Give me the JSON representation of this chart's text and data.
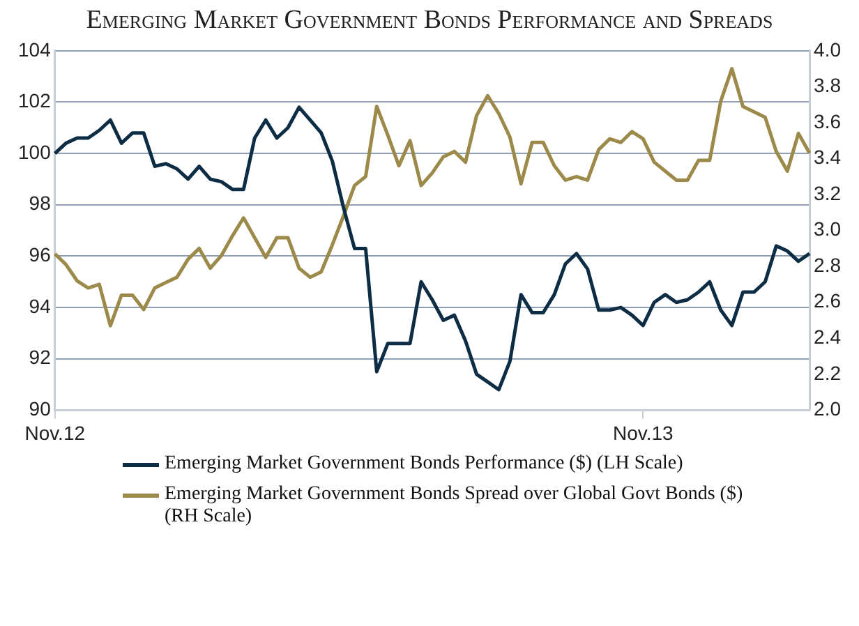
{
  "chart_data": {
    "type": "line",
    "title": "Emerging Market Government Bonds Performance and Spreads",
    "categories": [
      "Nov.12",
      null,
      null,
      null,
      null,
      null,
      null,
      null,
      null,
      null,
      null,
      null,
      null,
      null,
      null,
      null,
      null,
      null,
      null,
      null,
      null,
      null,
      null,
      null,
      null,
      null,
      null,
      null,
      null,
      null,
      null,
      null,
      null,
      null,
      null,
      null,
      null,
      null,
      null,
      null,
      null,
      null,
      null,
      null,
      null,
      null,
      null,
      null,
      null,
      null,
      null,
      null,
      null,
      "Nov.13",
      null,
      null,
      null,
      null,
      null,
      null,
      null,
      null,
      null,
      null,
      null,
      null,
      null,
      null,
      null
    ],
    "ylim": [
      90,
      104
    ],
    "yticks": [
      90,
      92,
      94,
      96,
      98,
      100,
      102,
      104
    ],
    "y2lim": [
      2.0,
      4.0
    ],
    "y2ticks": [
      {
        "value": 2.0,
        "label": "2.0"
      },
      {
        "value": 2.2,
        "label": "2.2"
      },
      {
        "value": 2.4,
        "label": "2.4"
      },
      {
        "value": 2.6,
        "label": "2.6"
      },
      {
        "value": 2.8,
        "label": "2.8"
      },
      {
        "value": 3.0,
        "label": "3.0"
      },
      {
        "value": 3.2,
        "label": "3.2"
      },
      {
        "value": 3.4,
        "label": "3.4"
      },
      {
        "value": 3.6,
        "label": "3.6"
      },
      {
        "value": 3.8,
        "label": "3.8"
      },
      {
        "value": 4.0,
        "label": "4.0"
      }
    ],
    "grid": "y",
    "legend": "bottom",
    "marker": "none",
    "line_style": "solid",
    "series": [
      {
        "name": "Emerging Market Government Bonds Performance ($) (LH Scale)",
        "color": "#0d2d45",
        "values": [
          100.0,
          100.4,
          100.6,
          100.6,
          100.9,
          101.3,
          100.4,
          100.8,
          100.8,
          99.5,
          99.6,
          99.4,
          99.0,
          99.5,
          99.0,
          98.9,
          98.6,
          98.6,
          100.6,
          101.3,
          100.6,
          101.0,
          101.8,
          101.3,
          100.8,
          99.7,
          97.9,
          96.3,
          96.3,
          91.5,
          92.6,
          92.6,
          92.6,
          95.0,
          94.3,
          93.5,
          93.7,
          92.7,
          91.4,
          91.1,
          90.8,
          91.9,
          94.5,
          93.8,
          93.8,
          94.5,
          95.7,
          96.1,
          95.5,
          93.9,
          93.9,
          94.0,
          93.7,
          93.3,
          94.2,
          94.5,
          94.2,
          94.3,
          94.6,
          95.0,
          93.9,
          93.3,
          94.6,
          94.6,
          95.0,
          96.4,
          96.2,
          95.8,
          96.1
        ]
      },
      {
        "name": "Emerging Market Government Bonds Spread over Global Govt Bonds ($) (RH Scale)",
        "color": "#9b8a4a",
        "axis": "y2",
        "values": [
          2.87,
          2.81,
          2.72,
          2.68,
          2.7,
          2.47,
          2.64,
          2.64,
          2.56,
          2.68,
          2.71,
          2.74,
          2.84,
          2.9,
          2.79,
          2.86,
          2.97,
          3.07,
          2.96,
          2.85,
          2.96,
          2.96,
          2.79,
          2.74,
          2.77,
          2.92,
          3.08,
          3.25,
          3.3,
          3.69,
          3.53,
          3.36,
          3.5,
          3.25,
          3.32,
          3.41,
          3.44,
          3.38,
          3.64,
          3.75,
          3.65,
          3.52,
          3.26,
          3.49,
          3.49,
          3.36,
          3.28,
          3.3,
          3.28,
          3.45,
          3.51,
          3.49,
          3.55,
          3.51,
          3.38,
          3.33,
          3.28,
          3.28,
          3.39,
          3.39,
          3.72,
          3.9,
          3.69,
          3.66,
          3.63,
          3.44,
          3.33,
          3.54,
          3.43
        ]
      }
    ]
  }
}
